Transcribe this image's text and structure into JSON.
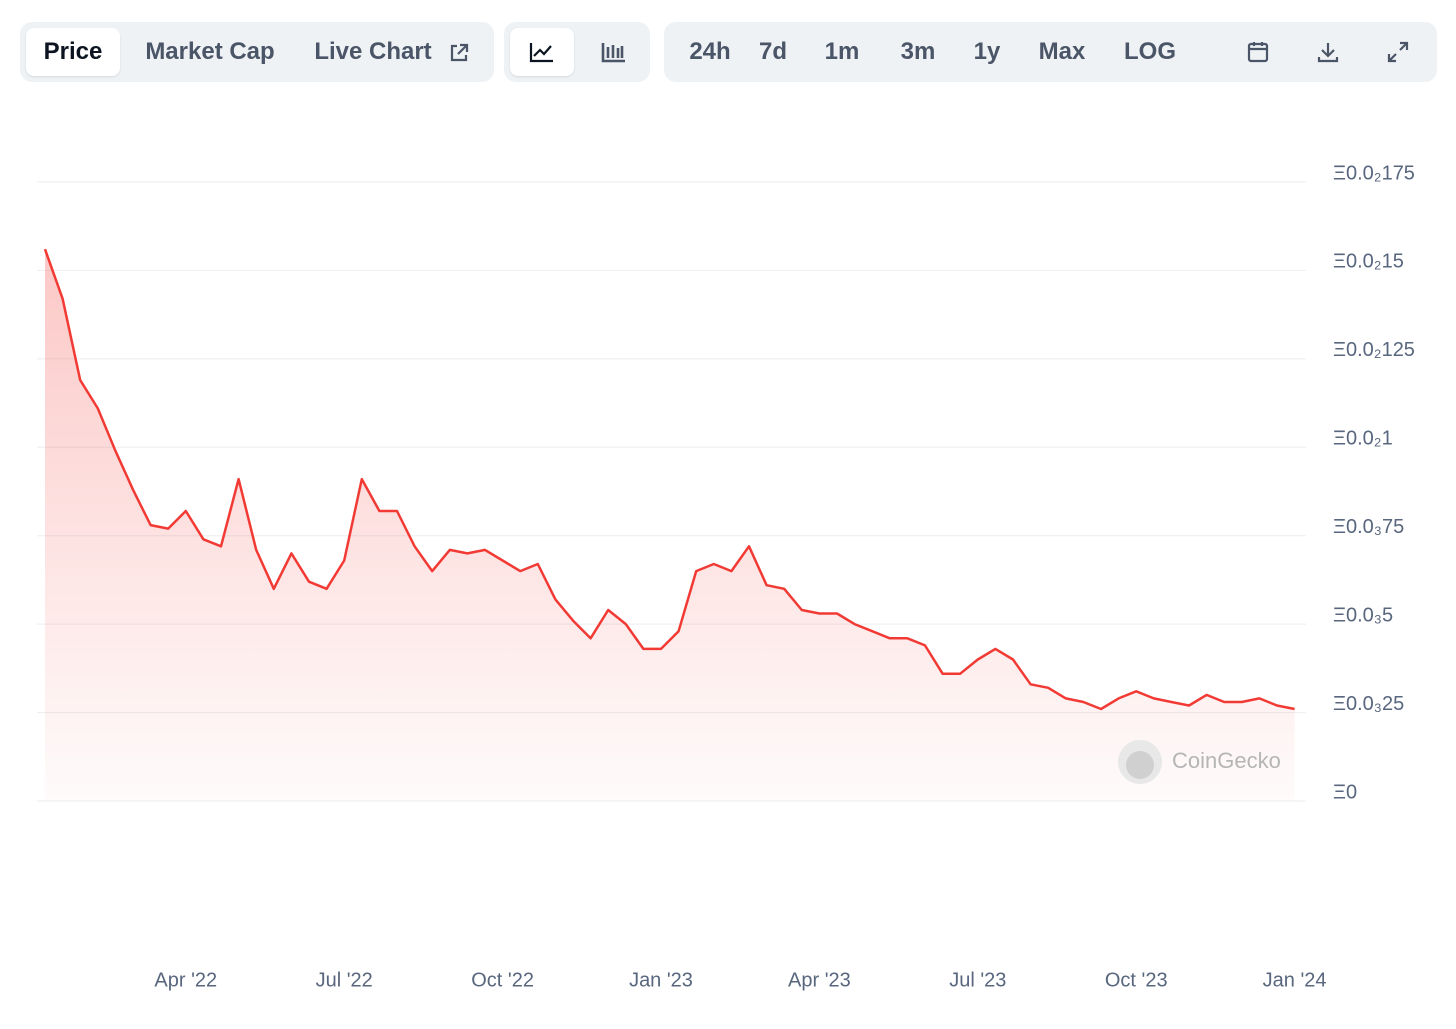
{
  "toolbar": {
    "tabs": [
      "Price",
      "Market Cap",
      "Live Chart"
    ],
    "ranges": [
      "24h",
      "7d",
      "1m",
      "3m",
      "1y",
      "Max",
      "LOG"
    ]
  },
  "chart_data": {
    "type": "line",
    "watermark": "CoinGecko",
    "color": "#f23a35",
    "grid": true,
    "categories": [
      null,
      null,
      null,
      null,
      null,
      null,
      null,
      null,
      "Apr '22",
      null,
      null,
      null,
      null,
      null,
      null,
      null,
      null,
      "Jul '22",
      null,
      null,
      null,
      null,
      null,
      null,
      null,
      null,
      "Oct '22",
      null,
      null,
      null,
      null,
      null,
      null,
      null,
      null,
      "Jan '23",
      null,
      null,
      null,
      null,
      null,
      null,
      null,
      null,
      "Apr '23",
      null,
      null,
      null,
      null,
      null,
      null,
      null,
      null,
      "Jul '23",
      null,
      null,
      null,
      null,
      null,
      null,
      null,
      null,
      "Oct '23",
      null,
      null,
      null,
      null,
      null,
      null,
      null,
      null,
      "Jan '24"
    ],
    "values": [
      0.00156,
      0.00142,
      0.00119,
      0.00111,
      0.00099,
      0.00088,
      0.00078,
      0.00077,
      0.00082,
      0.00074,
      0.00072,
      0.00091,
      0.00071,
      0.0006,
      0.0007,
      0.00062,
      0.0006,
      0.00068,
      0.00091,
      0.00082,
      0.00082,
      0.00072,
      0.00065,
      0.00071,
      0.0007,
      0.00071,
      0.00068,
      0.00065,
      0.00067,
      0.00057,
      0.00051,
      0.00046,
      0.00054,
      0.0005,
      0.00043,
      0.00043,
      0.00048,
      0.00065,
      0.00067,
      0.00065,
      0.00072,
      0.00061,
      0.0006,
      0.00054,
      0.00053,
      0.00053,
      0.0005,
      0.00048,
      0.00046,
      0.00046,
      0.00044,
      0.00036,
      0.00036,
      0.0004,
      0.00043,
      0.0004,
      0.00033,
      0.00032,
      0.00029,
      0.00028,
      0.00026,
      0.00029,
      0.00031,
      0.00029,
      0.00028,
      0.00027,
      0.0003,
      0.00028,
      0.00028,
      0.00029,
      0.00027,
      0.00026
    ],
    "ylim": [
      0,
      0.00175
    ],
    "yticks": [
      {
        "value": 0,
        "label": "Ξ0"
      },
      {
        "value": 0.00025,
        "label": "Ξ0.0₃25"
      },
      {
        "value": 0.0005,
        "label": "Ξ0.0₃5"
      },
      {
        "value": 0.00075,
        "label": "Ξ0.0₃75"
      },
      {
        "value": 0.001,
        "label": "Ξ0.0₂1"
      },
      {
        "value": 0.00125,
        "label": "Ξ0.0₂125"
      },
      {
        "value": 0.0015,
        "label": "Ξ0.0₂15"
      },
      {
        "value": 0.00175,
        "label": "Ξ0.0₂175"
      }
    ]
  }
}
